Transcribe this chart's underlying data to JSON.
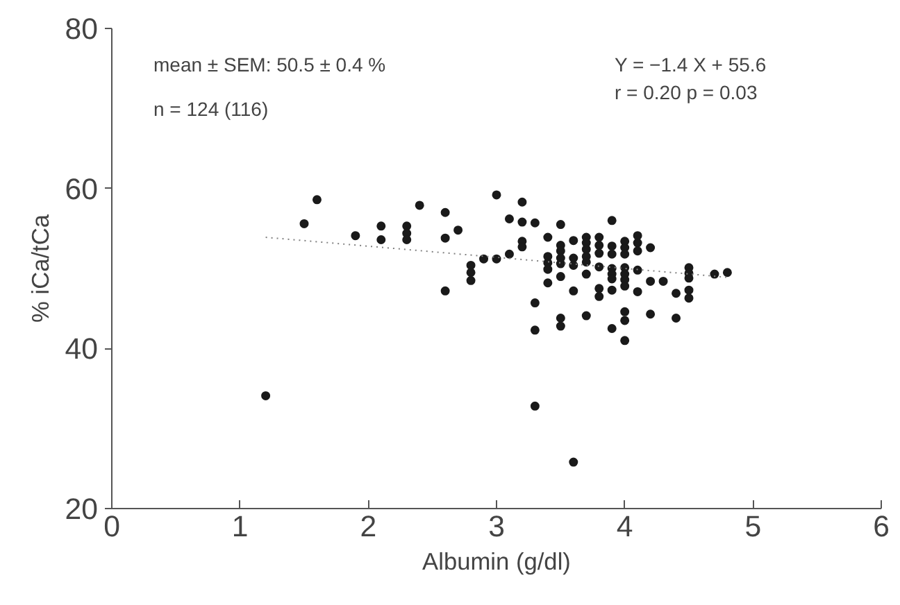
{
  "chart_data": {
    "type": "scatter",
    "xlabel": "Albumin (g/dl)",
    "ylabel": "% iCa/tCa",
    "xlim": [
      0,
      6
    ],
    "xticks": [
      0,
      1,
      2,
      3,
      4,
      5,
      6
    ],
    "ylim": [
      20,
      80
    ],
    "yticks": [
      20,
      40,
      60,
      80
    ],
    "grid": false,
    "annotations": [
      "mean ± SEM: 50.5 ± 0.4 %",
      "n = 124 (116)",
      "Y = −1.4 X + 55.6",
      "r = 0.20   p = 0.03"
    ],
    "series": [
      {
        "marker": "circle",
        "color": "#1a1a1a",
        "x": [
          1.2,
          1.5,
          1.6,
          1.9,
          2.1,
          2.1,
          2.3,
          2.3,
          2.3,
          2.4,
          2.6,
          2.6,
          2.6,
          2.7,
          2.8,
          2.8,
          2.8,
          2.9,
          3.0,
          3.0,
          3.1,
          3.1,
          3.2,
          3.2,
          3.2,
          3.2,
          3.3,
          3.3,
          3.3,
          3.3,
          3.4,
          3.4,
          3.4,
          3.4,
          3.4,
          3.5,
          3.5,
          3.5,
          3.5,
          3.5,
          3.5,
          3.5,
          3.5,
          3.6,
          3.6,
          3.6,
          3.6,
          3.6,
          3.7,
          3.7,
          3.7,
          3.7,
          3.7,
          3.7,
          3.7,
          3.8,
          3.8,
          3.8,
          3.8,
          3.8,
          3.8,
          3.9,
          3.9,
          3.9,
          3.9,
          3.9,
          3.9,
          3.9,
          3.9,
          4.0,
          4.0,
          4.0,
          4.0,
          4.0,
          4.0,
          4.0,
          4.0,
          4.0,
          4.0,
          4.1,
          4.1,
          4.1,
          4.1,
          4.1,
          4.2,
          4.2,
          4.2,
          4.3,
          4.4,
          4.4,
          4.5,
          4.5,
          4.5,
          4.5,
          4.5,
          4.7,
          4.8
        ],
        "values": [
          34.1,
          55.6,
          58.6,
          54.1,
          55.3,
          53.6,
          55.3,
          54.4,
          53.6,
          57.9,
          57.0,
          53.8,
          47.2,
          54.8,
          50.4,
          49.5,
          48.5,
          51.2,
          59.2,
          51.2,
          56.2,
          51.8,
          58.3,
          55.8,
          53.4,
          52.7,
          55.7,
          45.7,
          42.3,
          32.8,
          53.9,
          51.5,
          50.7,
          49.9,
          48.2,
          55.5,
          52.9,
          52.2,
          51.3,
          50.6,
          49.0,
          43.8,
          42.8,
          53.5,
          51.3,
          50.4,
          47.2,
          25.8,
          53.9,
          53.2,
          52.4,
          51.5,
          50.8,
          49.3,
          44.1,
          53.9,
          52.9,
          51.9,
          50.2,
          47.5,
          46.5,
          56.0,
          52.8,
          51.8,
          50.0,
          49.3,
          48.7,
          47.3,
          42.5,
          53.4,
          52.6,
          51.8,
          50.1,
          49.3,
          48.6,
          47.8,
          44.6,
          43.5,
          41.0,
          54.1,
          53.2,
          52.2,
          49.8,
          47.1,
          52.6,
          48.4,
          44.3,
          48.4,
          46.9,
          43.8,
          50.1,
          49.4,
          48.8,
          47.3,
          46.3,
          49.3,
          49.5
        ]
      },
      {
        "type": "line",
        "line_style": "dotted",
        "color": "#808080",
        "x": [
          1.2,
          4.8
        ],
        "values": [
          53.9,
          48.9
        ]
      }
    ]
  }
}
